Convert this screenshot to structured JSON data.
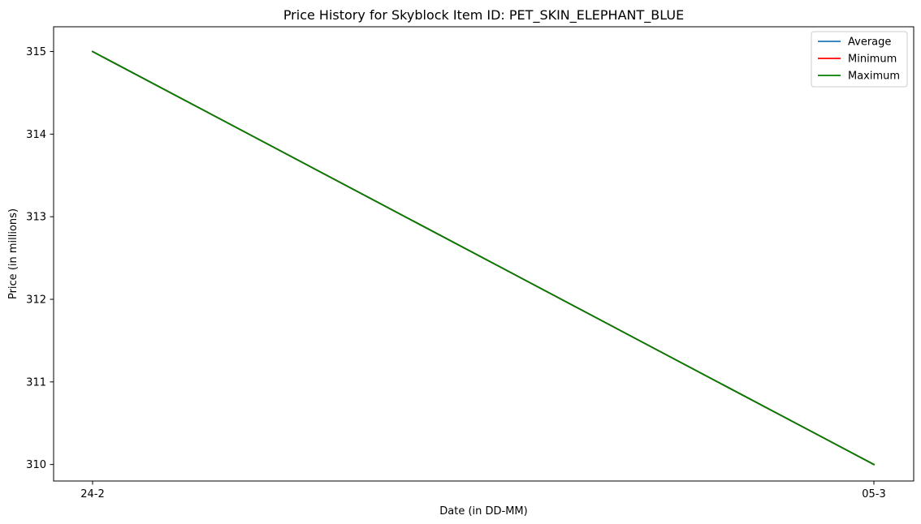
{
  "chart_data": {
    "type": "line",
    "title": "Price History for Skyblock Item ID: PET_SKIN_ELEPHANT_BLUE",
    "xlabel": "Date (in DD-MM)",
    "ylabel": "Price (in millions)",
    "categories": [
      "24-2",
      "05-3"
    ],
    "ylim": [
      309.8,
      315.3
    ],
    "yticks": [
      310,
      311,
      312,
      313,
      314,
      315
    ],
    "grid": false,
    "legend_position": "top-right",
    "series": [
      {
        "name": "Average",
        "color": "#1f77b4",
        "values": [
          315,
          310
        ]
      },
      {
        "name": "Minimum",
        "color": "#ff0000",
        "values": [
          315,
          310
        ]
      },
      {
        "name": "Maximum",
        "color": "#008000",
        "values": [
          315,
          310
        ]
      }
    ]
  }
}
